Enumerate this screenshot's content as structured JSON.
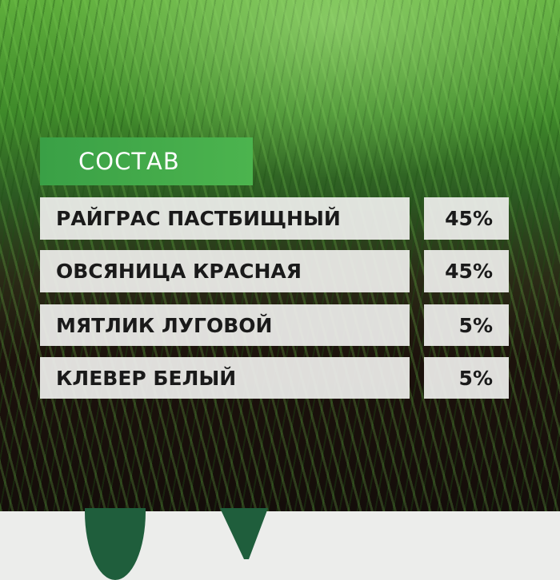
{
  "heading": "СОСТАВ",
  "colors": {
    "heading_bg": "#3aa046",
    "row_bg": "#eeeeec",
    "text": "#1a1a1a",
    "leaf": "#1f5e3c"
  },
  "composition": [
    {
      "name": "РАЙГРАС ПАСТБИЩНЫЙ",
      "percent": "45%"
    },
    {
      "name": "ОВСЯНИЦА КРАСНАЯ",
      "percent": "45%"
    },
    {
      "name": "МЯТЛИК ЛУГОВОЙ",
      "percent": "5%"
    },
    {
      "name": "КЛЕВЕР БЕЛЫЙ",
      "percent": "5%"
    }
  ]
}
